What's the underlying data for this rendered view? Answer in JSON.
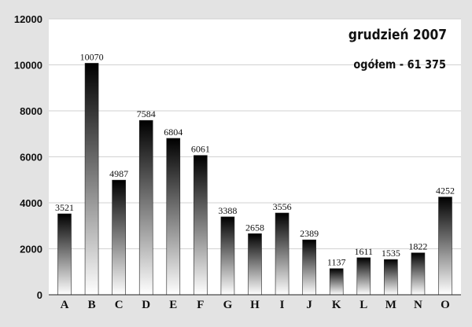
{
  "chart_data": {
    "type": "bar",
    "title": "grudzień 2007",
    "subtitle": "ogółem - 61 375",
    "categories": [
      "A",
      "B",
      "C",
      "D",
      "E",
      "F",
      "G",
      "H",
      "I",
      "J",
      "K",
      "L",
      "M",
      "N",
      "O"
    ],
    "values": [
      3521,
      10070,
      4987,
      7584,
      6804,
      6061,
      3388,
      2658,
      3556,
      2389,
      1137,
      1611,
      1535,
      1822,
      4252
    ],
    "value_labels": [
      "3521",
      "10070",
      "4987",
      "7584",
      "6804",
      "6061",
      "3388",
      "2658",
      "3556",
      "2389",
      "1137",
      "1611",
      "1535",
      "1822",
      "4252"
    ],
    "yticks": [
      0,
      2000,
      4000,
      6000,
      8000,
      10000,
      12000
    ],
    "ylim": [
      0,
      12000
    ],
    "xlabel": "",
    "ylabel": "",
    "grid": "horizontal",
    "bar_gradient": [
      "#000000",
      "#ffffff"
    ]
  }
}
